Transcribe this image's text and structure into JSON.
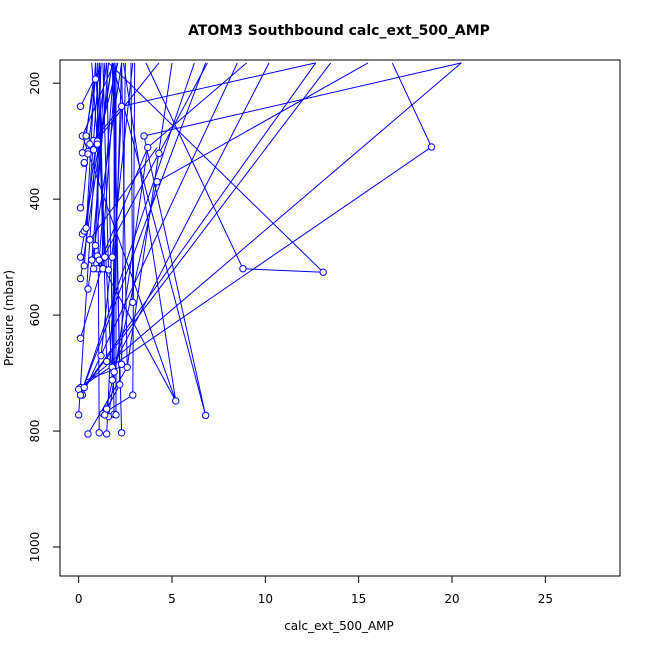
{
  "chart_data": {
    "type": "scatter",
    "title": "ATOM3 Southbound calc_ext_500_AMP",
    "xlabel": "calc_ext_500_AMP",
    "ylabel": "Pressure (mbar)",
    "xlim": [
      -1.0,
      29.0
    ],
    "ylim": [
      1050,
      160
    ],
    "y_reversed": true,
    "grid": false,
    "x_ticks": [
      0,
      5,
      10,
      15,
      20,
      25
    ],
    "y_ticks": [
      200,
      400,
      600,
      800,
      1000
    ],
    "color": "#0000ff",
    "marker": "open-circle",
    "series": [
      {
        "x": [
          0.1,
          0.2,
          0.4,
          0.5,
          0.8,
          0.9,
          1.0,
          0.2,
          0.3,
          0.3,
          0.5,
          0.6,
          0.8,
          1.0,
          2.3,
          3.5,
          3.7,
          4.3,
          4.2,
          18.9,
          0.1,
          0.2,
          0.3,
          0.4,
          0.6,
          0.9,
          0.7,
          1.0,
          1.4,
          1.8,
          1.2,
          1.0,
          8.8,
          13.1,
          0.1,
          0.3,
          0.1,
          0.5,
          0.8,
          1.3,
          1.1,
          1.6,
          2.9,
          1.8,
          0.1,
          1.2,
          1.5,
          2.6,
          1.9,
          1.8,
          2.2,
          2.9,
          2.3,
          0.1,
          0.0,
          0.3,
          0.2,
          0.1,
          0.0,
          5.2,
          6.8,
          1.3,
          1.5,
          1.6,
          1.9,
          2.0,
          1.4,
          1.5,
          2.3,
          0.5,
          1.1
        ],
        "y": [
          240,
          291,
          291,
          318,
          299,
          193,
          300,
          320,
          338,
          337,
          322,
          305,
          315,
          305,
          240,
          291,
          311,
          321,
          370,
          310,
          415,
          460,
          455,
          450,
          470,
          480,
          505,
          498,
          500,
          500,
          520,
          520,
          520,
          526,
          500,
          515,
          537,
          555,
          520,
          520,
          505,
          522,
          578,
          690,
          640,
          670,
          680,
          690,
          698,
          712,
          720,
          738,
          685,
          725,
          728,
          725,
          738,
          738,
          772,
          748,
          773,
          770,
          762,
          775,
          771,
          772,
          772,
          805,
          803,
          805,
          803
        ]
      }
    ],
    "segments": [
      [
        [
          0.1,
          240
        ],
        [
          1.2,
          170
        ]
      ],
      [
        [
          0.2,
          291
        ],
        [
          1.9,
          165
        ]
      ],
      [
        [
          0.4,
          291
        ],
        [
          0.8,
          193
        ]
      ],
      [
        [
          0.5,
          318
        ],
        [
          4.3,
          165
        ]
      ],
      [
        [
          0.8,
          299
        ],
        [
          2.3,
          240
        ]
      ],
      [
        [
          2.3,
          240
        ],
        [
          12.7,
          165
        ]
      ],
      [
        [
          3.5,
          291
        ],
        [
          20.5,
          165
        ]
      ],
      [
        [
          3.7,
          311
        ],
        [
          9.0,
          165
        ]
      ],
      [
        [
          4.3,
          321
        ],
        [
          6.9,
          165
        ]
      ],
      [
        [
          4.2,
          370
        ],
        [
          15.5,
          165
        ]
      ],
      [
        [
          18.9,
          310
        ],
        [
          16.8,
          165
        ]
      ],
      [
        [
          8.8,
          520
        ],
        [
          3.6,
          165
        ]
      ],
      [
        [
          13.1,
          526
        ],
        [
          1.6,
          165
        ]
      ],
      [
        [
          13.1,
          526
        ],
        [
          8.8,
          520
        ]
      ],
      [
        [
          0.2,
          320
        ],
        [
          0.9,
          193
        ]
      ],
      [
        [
          0.3,
          338
        ],
        [
          0.3,
          337
        ]
      ],
      [
        [
          1.0,
          300
        ],
        [
          0.7,
          165
        ]
      ],
      [
        [
          1.0,
          305
        ],
        [
          2.1,
          165
        ]
      ],
      [
        [
          0.2,
          415
        ],
        [
          0.9,
          193
        ]
      ],
      [
        [
          0.3,
          460
        ],
        [
          1.5,
          165
        ]
      ],
      [
        [
          0.4,
          455
        ],
        [
          0.9,
          165
        ]
      ],
      [
        [
          0.6,
          470
        ],
        [
          4.2,
          311
        ]
      ],
      [
        [
          0.9,
          480
        ],
        [
          1.2,
          165
        ]
      ],
      [
        [
          0.7,
          505
        ],
        [
          1.6,
          165
        ]
      ],
      [
        [
          1.0,
          498
        ],
        [
          1.8,
          500
        ]
      ],
      [
        [
          1.4,
          500
        ],
        [
          0.9,
          165
        ]
      ],
      [
        [
          1.2,
          520
        ],
        [
          2.0,
          165
        ]
      ],
      [
        [
          1.0,
          520
        ],
        [
          3.7,
          311
        ]
      ],
      [
        [
          0.1,
          500
        ],
        [
          1.8,
          165
        ]
      ],
      [
        [
          0.3,
          515
        ],
        [
          1.1,
          165
        ]
      ],
      [
        [
          0.1,
          537
        ],
        [
          1.8,
          165
        ]
      ],
      [
        [
          0.5,
          555
        ],
        [
          2.3,
          165
        ]
      ],
      [
        [
          0.8,
          520
        ],
        [
          1.4,
          165
        ]
      ],
      [
        [
          1.3,
          520
        ],
        [
          1.1,
          165
        ]
      ],
      [
        [
          1.1,
          505
        ],
        [
          1.9,
          165
        ]
      ],
      [
        [
          1.6,
          522
        ],
        [
          1.3,
          165
        ]
      ],
      [
        [
          2.9,
          578
        ],
        [
          2.8,
          165
        ]
      ],
      [
        [
          1.8,
          690
        ],
        [
          2.3,
          165
        ]
      ],
      [
        [
          1.2,
          670
        ],
        [
          2.9,
          165
        ]
      ],
      [
        [
          1.5,
          680
        ],
        [
          1.1,
          165
        ]
      ],
      [
        [
          2.6,
          690
        ],
        [
          2.3,
          165
        ]
      ],
      [
        [
          1.9,
          698
        ],
        [
          1.9,
          165
        ]
      ],
      [
        [
          1.8,
          712
        ],
        [
          2.0,
          165
        ]
      ],
      [
        [
          2.2,
          720
        ],
        [
          1.9,
          165
        ]
      ],
      [
        [
          2.9,
          738
        ],
        [
          3.0,
          165
        ]
      ],
      [
        [
          2.3,
          685
        ],
        [
          2.5,
          165
        ]
      ],
      [
        [
          0.1,
          725
        ],
        [
          18.9,
          310
        ]
      ],
      [
        [
          0.0,
          728
        ],
        [
          20.5,
          165
        ]
      ],
      [
        [
          0.3,
          725
        ],
        [
          12.7,
          165
        ]
      ],
      [
        [
          0.2,
          738
        ],
        [
          8.5,
          165
        ]
      ],
      [
        [
          0.1,
          738
        ],
        [
          6.8,
          165
        ]
      ],
      [
        [
          0.0,
          772
        ],
        [
          1.2,
          165
        ]
      ],
      [
        [
          5.2,
          748
        ],
        [
          2.4,
          165
        ]
      ],
      [
        [
          6.8,
          773
        ],
        [
          3.5,
          291
        ]
      ],
      [
        [
          6.8,
          773
        ],
        [
          1.8,
          165
        ]
      ],
      [
        [
          1.3,
          770
        ],
        [
          2.9,
          738
        ]
      ],
      [
        [
          1.5,
          762
        ],
        [
          2.2,
          720
        ]
      ],
      [
        [
          1.6,
          775
        ],
        [
          3.7,
          311
        ]
      ],
      [
        [
          1.9,
          771
        ],
        [
          1.5,
          165
        ]
      ],
      [
        [
          2.0,
          772
        ],
        [
          2.0,
          165
        ]
      ],
      [
        [
          1.4,
          772
        ],
        [
          4.2,
          370
        ]
      ],
      [
        [
          1.5,
          805
        ],
        [
          2.3,
          240
        ]
      ],
      [
        [
          2.3,
          803
        ],
        [
          1.8,
          165
        ]
      ],
      [
        [
          0.5,
          805
        ],
        [
          2.6,
          690
        ]
      ],
      [
        [
          1.1,
          803
        ],
        [
          1.0,
          165
        ]
      ],
      [
        [
          0.1,
          640
        ],
        [
          1.4,
          500
        ]
      ],
      [
        [
          1.8,
          690
        ],
        [
          10.2,
          165
        ]
      ],
      [
        [
          2.6,
          690
        ],
        [
          5.0,
          165
        ]
      ],
      [
        [
          0.3,
          725
        ],
        [
          13.5,
          165
        ]
      ],
      [
        [
          0.1,
          738
        ],
        [
          6.2,
          165
        ]
      ],
      [
        [
          0.4,
          712
        ],
        [
          2.2,
          690
        ]
      ],
      [
        [
          1.8,
          712
        ],
        [
          0.9,
          165
        ]
      ],
      [
        [
          1.0,
          520
        ],
        [
          4.3,
          321
        ]
      ],
      [
        [
          0.2,
          291
        ],
        [
          5.2,
          748
        ]
      ],
      [
        [
          1.1,
          505
        ],
        [
          5.2,
          748
        ]
      ]
    ]
  }
}
